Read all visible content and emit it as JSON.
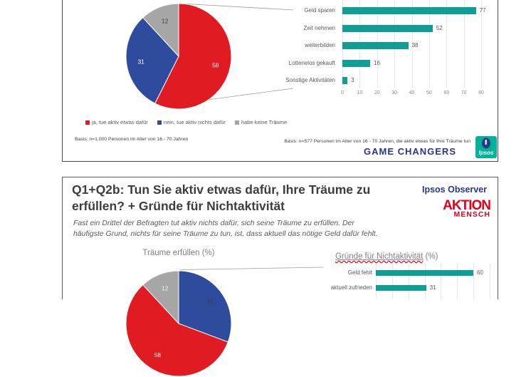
{
  "slide1": {
    "legend": [
      {
        "label": "ja, tue aktiv etwas dafür",
        "color": "#e11b22"
      },
      {
        "label": "nein, tue aktiv nichts dafür",
        "color": "#2f4b9e"
      },
      {
        "label": "habe keine Träume",
        "color": "#a6a6a6"
      }
    ],
    "basis_left": "Basis: n=1.000 Personen im Alter von 16 - 70 Jahren",
    "basis_right": "Basis: n=577 Personen im Alter von 16 - 70 Jahren, die aktiv etwas für Ihre Träume tun",
    "brand_text": "GAME CHANGERS",
    "logo_text": "Ipsos"
  },
  "slide2": {
    "title_line1": "Q1+Q2b: Tun Sie aktiv etwas dafür, Ihre Träume zu",
    "title_line2": "erfüllen? + Gründe für Nichtaktivität",
    "subtitle_line1": "Fast ein Drittel der Befragten tut aktiv nichts dafür, sich seine Träume zu erfüllen. Der",
    "subtitle_line2": "häufigste Grund, nichts für seine Träume zu tun, ist, dass aktuell das nötige Geld dafür fehlt.",
    "observer_text": "Ipsos Observer",
    "aktion_line1": "AKTION",
    "aktion_line2": "MENSCH",
    "pie_title": "Träume erfüllen (%)",
    "bars_title_main": "Gründe für Nichtaktivität",
    "bars_title_suffix": " (%)"
  },
  "colors": {
    "pie_red": "#e11b22",
    "pie_blue": "#2f4b9e",
    "pie_gray": "#a6a6a6",
    "bar_teal": "#0f9e96",
    "brand_blue": "#28368f",
    "aktion_red": "#e2001a",
    "ipsos_logo_teal": "#00b398",
    "ipsos_logo_blue": "#283a8d"
  },
  "chart_data": [
    {
      "type": "pie",
      "slide": 1,
      "labels": [
        "ja, tue aktiv etwas dafür",
        "nein, tue aktiv nichts dafür",
        "habe keine Träume"
      ],
      "values": [
        58,
        31,
        12
      ],
      "colors": [
        "#e11b22",
        "#2f4b9e",
        "#a6a6a6"
      ],
      "legend_position": "bottom"
    },
    {
      "type": "bar",
      "slide": 1,
      "orientation": "horizontal",
      "categories": [
        "Geld sparen",
        "Zeit nehmen",
        "weiterbilden",
        "Lotterielos gekauft",
        "Sonstige Aktivitäten"
      ],
      "values": [
        77,
        52,
        38,
        16,
        3
      ],
      "xlim": [
        0,
        80
      ],
      "ticks": [
        0,
        10,
        20,
        30,
        40,
        50,
        60,
        70,
        80
      ],
      "grid": true,
      "color": "#0f9e96"
    },
    {
      "type": "pie",
      "slide": 2,
      "title": "Träume erfüllen (%)",
      "labels": [
        "nein, tue aktiv nichts dafür",
        "ja, tue aktiv etwas dafür",
        "habe keine Träume"
      ],
      "values": [
        31,
        58,
        12
      ],
      "colors": [
        "#2f4b9e",
        "#e11b22",
        "#a6a6a6"
      ]
    },
    {
      "type": "bar",
      "slide": 2,
      "title": "Gründe für Nichtaktivität (%)",
      "orientation": "horizontal",
      "categories": [
        "Geld fehlt",
        "aktuell zufrieden"
      ],
      "values": [
        60,
        31
      ],
      "xlim": [
        0,
        70
      ],
      "grid": true,
      "color": "#0f9e96"
    }
  ]
}
